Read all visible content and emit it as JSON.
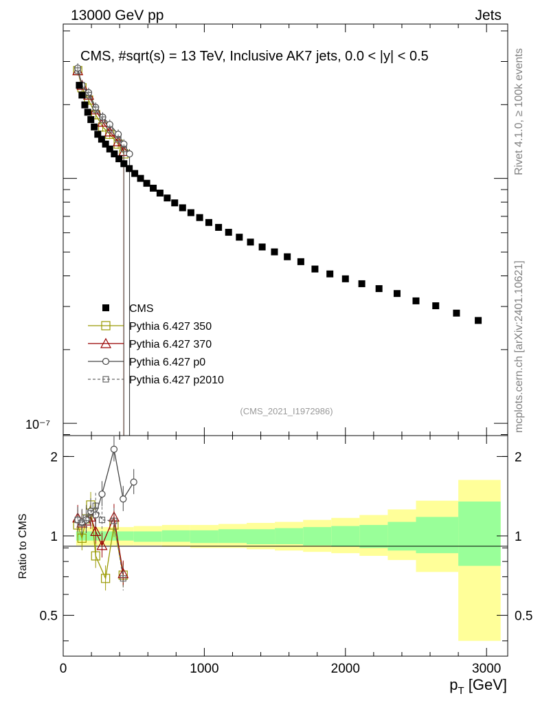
{
  "header": {
    "left": "13000 GeV pp",
    "right": "Jets",
    "side_rivet": "Rivet 4.1.0, ≥ 100k events",
    "side_mcplots": "mcplots.cern.ch [arXiv:2401.10621]"
  },
  "colors": {
    "cms": "#000000",
    "p350": "#999900",
    "p370": "#990000",
    "p0": "#444444",
    "p2010": "#666666",
    "band_green": "#99ff99",
    "band_yellow": "#ffff99"
  },
  "chart_data": [
    {
      "type": "scatter",
      "title": "CMS, #sqrt(s) = 13 TeV, Inclusive AK7 jets, 0.0 < |y| < 0.5",
      "annotation": "(CMS_2021_I1972986)",
      "yscale": "log",
      "xlim": [
        0,
        3150
      ],
      "ylim_log10": [
        -7.05,
        -5.37
      ],
      "ytick_label": "10⁻⁷",
      "grid": false,
      "legend_placement": "bottom-left",
      "legend": [
        "CMS",
        "Pythia 6.427 350",
        "Pythia 6.427 370",
        "Pythia 6.427 p0",
        "Pythia 6.427 p2010"
      ],
      "series": [
        {
          "name": "CMS",
          "x": [
            114,
            133,
            153,
            174,
            196,
            220,
            245,
            272,
            300,
            330,
            362,
            395,
            430,
            468,
            507,
            548,
            592,
            638,
            686,
            737,
            790,
            846,
            905,
            967,
            1032,
            1101,
            1172,
            1248,
            1327,
            1410,
            1497,
            1588,
            1684,
            1784,
            1890,
            2000,
            2116,
            2238,
            2366,
            2500,
            2640,
            2787,
            2941
          ],
          "log10y": [
            -5.62,
            -5.66,
            -5.7,
            -5.73,
            -5.76,
            -5.79,
            -5.82,
            -5.84,
            -5.86,
            -5.88,
            -5.9,
            -5.92,
            -5.94,
            -5.96,
            -5.98,
            -6.0,
            -6.02,
            -6.04,
            -6.06,
            -6.08,
            -6.1,
            -6.12,
            -6.14,
            -6.16,
            -6.18,
            -6.2,
            -6.22,
            -6.24,
            -6.26,
            -6.28,
            -6.3,
            -6.32,
            -6.34,
            -6.37,
            -6.39,
            -6.41,
            -6.43,
            -6.45,
            -6.47,
            -6.5,
            -6.52,
            -6.55,
            -6.58
          ]
        },
        {
          "name": "Pythia 6.427 350",
          "x": [
            103,
            133,
            180,
            230,
            280,
            330,
            390,
            430
          ],
          "log10y": [
            -5.56,
            -5.63,
            -5.68,
            -5.74,
            -5.79,
            -5.82,
            -5.86,
            -5.9
          ]
        },
        {
          "name": "Pythia 6.427 370",
          "x": [
            103,
            133,
            180,
            230,
            280,
            330,
            390,
            430
          ],
          "log10y": [
            -5.56,
            -5.62,
            -5.66,
            -5.72,
            -5.77,
            -5.81,
            -5.85,
            -5.89
          ]
        },
        {
          "name": "Pythia 6.427 p0",
          "x": [
            103,
            133,
            180,
            230,
            280,
            330,
            390,
            430,
            470
          ],
          "log10y": [
            -5.55,
            -5.62,
            -5.65,
            -5.71,
            -5.75,
            -5.78,
            -5.82,
            -5.86,
            -5.9
          ]
        },
        {
          "name": "Pythia 6.427 p2010",
          "x": [
            103,
            133,
            180,
            230,
            280,
            330,
            390,
            430
          ],
          "log10y": [
            -5.56,
            -5.62,
            -5.66,
            -5.72,
            -5.76,
            -5.8,
            -5.84,
            -5.88
          ]
        }
      ]
    },
    {
      "type": "line",
      "ylabel": "Ratio to CMS",
      "xlabel": "p_T [GeV]",
      "xlim": [
        0,
        3150
      ],
      "ylim": [
        0.35,
        2.4
      ],
      "yscale": "log",
      "xticks": [
        0,
        1000,
        2000,
        3000
      ],
      "xtick_labels": [
        "0",
        "1000",
        "2000",
        "3000"
      ],
      "yticks": [
        0.5,
        1,
        2
      ],
      "ytick_labels": [
        "0.5",
        "1",
        "2"
      ],
      "band": {
        "edges": [
          92,
          500,
          700,
          900,
          1100,
          1300,
          1500,
          1700,
          1900,
          2100,
          2300,
          2500,
          2800,
          3100
        ],
        "green_lo": [
          0.96,
          0.95,
          0.95,
          0.94,
          0.94,
          0.93,
          0.93,
          0.92,
          0.91,
          0.9,
          0.88,
          0.86,
          0.77
        ],
        "green_hi": [
          1.04,
          1.04,
          1.05,
          1.05,
          1.06,
          1.06,
          1.07,
          1.08,
          1.09,
          1.1,
          1.13,
          1.18,
          1.35
        ],
        "yellow_lo": [
          0.92,
          0.92,
          0.91,
          0.9,
          0.9,
          0.89,
          0.88,
          0.87,
          0.86,
          0.84,
          0.81,
          0.73,
          0.4
        ],
        "yellow_hi": [
          1.08,
          1.09,
          1.1,
          1.1,
          1.11,
          1.12,
          1.13,
          1.15,
          1.17,
          1.2,
          1.26,
          1.36,
          1.63
        ]
      },
      "series": [
        {
          "name": "Pythia 6.427 350",
          "x": [
            103,
            133,
            163,
            195,
            230,
            300,
            360,
            425
          ],
          "values": [
            1.1,
            0.98,
            1.16,
            1.31,
            0.84,
            0.69,
            1.1,
            0.71
          ]
        },
        {
          "name": "Pythia 6.427 370",
          "x": [
            103,
            133,
            163,
            195,
            230,
            275,
            360,
            425
          ],
          "values": [
            1.17,
            1.12,
            1.14,
            1.18,
            1.04,
            0.92,
            1.18,
            0.72
          ]
        },
        {
          "name": "Pythia 6.427 p0",
          "x": [
            103,
            133,
            163,
            195,
            230,
            275,
            360,
            425,
            500
          ],
          "values": [
            1.15,
            1.13,
            1.15,
            1.24,
            1.2,
            1.44,
            2.13,
            1.38,
            1.6
          ]
        },
        {
          "name": "Pythia 6.427 p2010",
          "x": [
            103,
            133,
            163,
            195,
            230,
            275,
            360,
            425
          ],
          "values": [
            1.15,
            1.12,
            1.17,
            1.22,
            1.3,
            1.15,
            1.14,
            0.69
          ]
        }
      ]
    }
  ]
}
